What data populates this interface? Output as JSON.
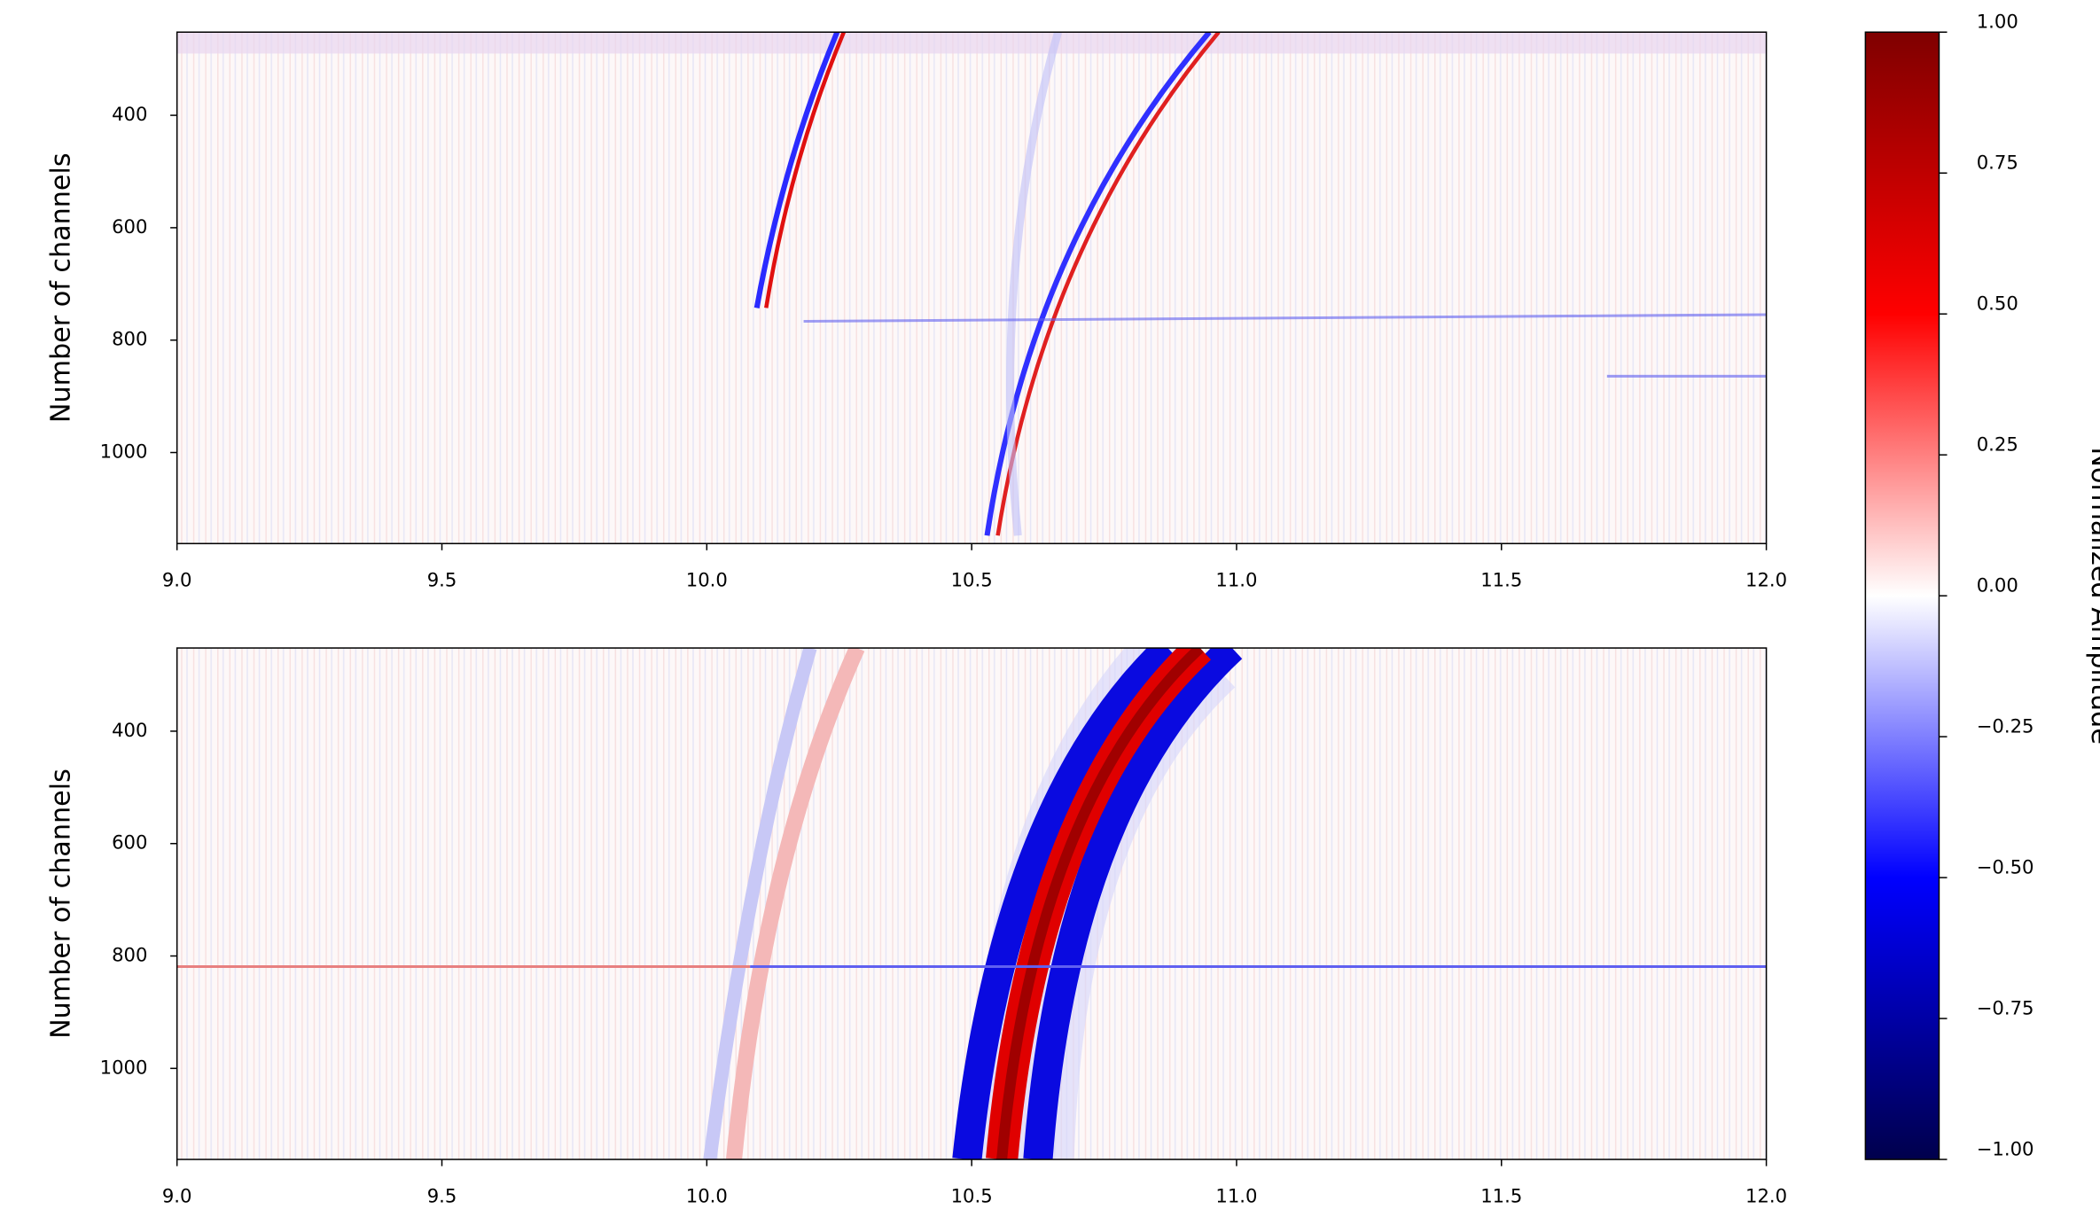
{
  "chart_data": [
    {
      "type": "heatmap",
      "ylabel": "Number of channels",
      "xlim": [
        9.0,
        12.0
      ],
      "xticks": [
        {
          "value": 9.0,
          "label": "9.0"
        },
        {
          "value": 9.5,
          "label": "9.5"
        },
        {
          "value": 10.0,
          "label": "10.0"
        },
        {
          "value": 10.5,
          "label": "10.5"
        },
        {
          "value": 11.0,
          "label": "11.0"
        },
        {
          "value": 11.5,
          "label": "11.5"
        },
        {
          "value": 12.0,
          "label": "12.0"
        }
      ],
      "ylim": [
        1162,
        252
      ],
      "yticks": [
        400,
        600,
        800,
        1000
      ]
    },
    {
      "type": "heatmap",
      "ylabel": "Number of channels",
      "xlim": [
        9.0,
        12.0
      ],
      "xticks": [
        {
          "value": 9.0,
          "label": "9.0"
        },
        {
          "value": 9.5,
          "label": "9.5"
        },
        {
          "value": 10.0,
          "label": "10.0"
        },
        {
          "value": 10.5,
          "label": "10.5"
        },
        {
          "value": 11.0,
          "label": "11.0"
        },
        {
          "value": 11.5,
          "label": "11.5"
        },
        {
          "value": 12.0,
          "label": "12.0"
        }
      ],
      "ylim": [
        1162,
        252
      ],
      "yticks": [
        400,
        600,
        800,
        1000
      ]
    }
  ],
  "colorbar": {
    "label": "Normalized Amplitude",
    "lim": [
      -1.0,
      1.0
    ],
    "colors": [
      "#00004c",
      "#0000ff",
      "#ffffff",
      "#ff0000",
      "#7f0000"
    ],
    "ticks": [
      {
        "value": 1.0,
        "label": "1.00"
      },
      {
        "value": 0.75,
        "label": "0.75"
      },
      {
        "value": 0.5,
        "label": "0.50"
      },
      {
        "value": 0.25,
        "label": "0.25"
      },
      {
        "value": 0.0,
        "label": "0.00"
      },
      {
        "value": -0.25,
        "label": "−0.25"
      },
      {
        "value": -0.5,
        "label": "−0.50"
      },
      {
        "value": -0.75,
        "label": "−0.75"
      },
      {
        "value": -1.0,
        "label": "−1.00"
      }
    ]
  }
}
